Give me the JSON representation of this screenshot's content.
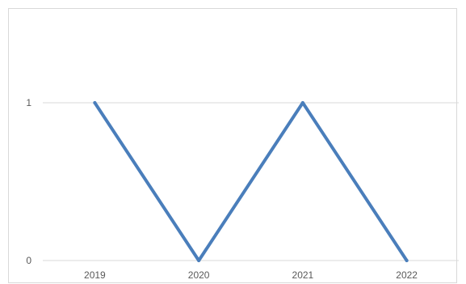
{
  "chart_data": {
    "type": "line",
    "categories": [
      "2019",
      "2020",
      "2021",
      "2022"
    ],
    "values": [
      1,
      0,
      1,
      0
    ],
    "title": "",
    "xlabel": "",
    "ylabel": "",
    "ylim": [
      0,
      1
    ],
    "y_ticks": [
      "0",
      "1"
    ],
    "grid": true,
    "legend": "none",
    "line_color": "#4a7ebb",
    "grid_color": "#d9d9d9"
  }
}
